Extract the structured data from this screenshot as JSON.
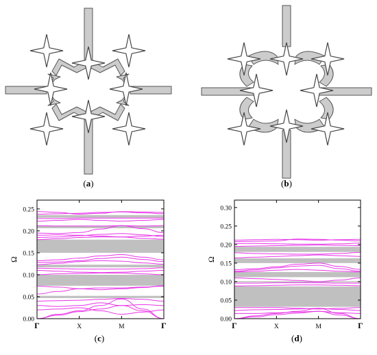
{
  "panels": {
    "a": {
      "open": "(",
      "letter": "a",
      "close": ")"
    },
    "b": {
      "open": "(",
      "letter": "b",
      "close": ")"
    },
    "c": {
      "open": "(",
      "letter": "c",
      "close": ")"
    },
    "d": {
      "open": "(",
      "letter": "d",
      "close": ")"
    }
  },
  "colors": {
    "band": "#e833e8",
    "gap": "#c0c0c0",
    "structure_fill": "#cccccc",
    "structure_stroke": "#555555"
  },
  "chart_data": [
    {
      "type": "line",
      "panel": "c",
      "xlabel": "",
      "ylabel": "Ω",
      "ylim": [
        0,
        0.27
      ],
      "x_ticks": [
        "Γ",
        "X",
        "M",
        "Γ"
      ],
      "y_ticks": [
        "0.00",
        "0.05",
        "0.10",
        "0.15",
        "0.20",
        "0.25"
      ],
      "y_tick_values": [
        0,
        0.05,
        0.1,
        0.15,
        0.2,
        0.25
      ],
      "band_gaps": [
        [
          0.047,
          0.052
        ],
        [
          0.075,
          0.1
        ],
        [
          0.117,
          0.123
        ],
        [
          0.15,
          0.18
        ],
        [
          0.206,
          0.211
        ],
        [
          0.23,
          0.236
        ]
      ],
      "x": [
        0,
        0.5,
        1,
        1.5,
        2,
        2.5,
        3
      ],
      "series": [
        {
          "values": [
            0.0,
            0.01,
            0.018,
            0.03,
            0.045,
            0.022,
            0.0
          ]
        },
        {
          "values": [
            0.0,
            0.008,
            0.016,
            0.022,
            0.03,
            0.018,
            0.0
          ]
        },
        {
          "values": [
            0.02,
            0.022,
            0.025,
            0.018,
            0.01,
            0.015,
            0.02
          ]
        },
        {
          "values": [
            0.03,
            0.028,
            0.03,
            0.036,
            0.03,
            0.032,
            0.03
          ]
        },
        {
          "values": [
            0.04,
            0.041,
            0.042,
            0.044,
            0.046,
            0.044,
            0.04
          ]
        },
        {
          "values": [
            0.056,
            0.062,
            0.068,
            0.07,
            0.07,
            0.072,
            0.074
          ]
        },
        {
          "values": [
            0.074,
            0.072,
            0.068,
            0.066,
            0.068,
            0.071,
            0.075
          ]
        },
        {
          "values": [
            0.1,
            0.102,
            0.103,
            0.104,
            0.104,
            0.102,
            0.1
          ]
        },
        {
          "values": [
            0.11,
            0.108,
            0.106,
            0.105,
            0.106,
            0.108,
            0.11
          ]
        },
        {
          "values": [
            0.115,
            0.114,
            0.113,
            0.113,
            0.113,
            0.114,
            0.116
          ]
        },
        {
          "values": [
            0.123,
            0.126,
            0.13,
            0.132,
            0.131,
            0.127,
            0.124
          ]
        },
        {
          "values": [
            0.128,
            0.129,
            0.132,
            0.137,
            0.14,
            0.135,
            0.13
          ]
        },
        {
          "values": [
            0.132,
            0.134,
            0.138,
            0.143,
            0.146,
            0.14,
            0.134
          ]
        },
        {
          "values": [
            0.18,
            0.182,
            0.185,
            0.186,
            0.186,
            0.183,
            0.181
          ]
        },
        {
          "values": [
            0.185,
            0.186,
            0.189,
            0.192,
            0.194,
            0.191,
            0.187
          ]
        },
        {
          "values": [
            0.19,
            0.191,
            0.19,
            0.188,
            0.186,
            0.188,
            0.19
          ]
        },
        {
          "values": [
            0.195,
            0.194,
            0.196,
            0.204,
            0.212,
            0.205,
            0.196
          ]
        },
        {
          "values": [
            0.212,
            0.211,
            0.211,
            0.211,
            0.212,
            0.211,
            0.212
          ]
        },
        {
          "values": [
            0.222,
            0.224,
            0.226,
            0.224,
            0.222,
            0.224,
            0.226
          ]
        },
        {
          "values": [
            0.228,
            0.228,
            0.229,
            0.229,
            0.229,
            0.229,
            0.229
          ]
        },
        {
          "values": [
            0.238,
            0.239,
            0.24,
            0.242,
            0.243,
            0.241,
            0.239
          ]
        },
        {
          "values": [
            0.244,
            0.242,
            0.238,
            0.24,
            0.244,
            0.243,
            0.242
          ]
        }
      ]
    },
    {
      "type": "line",
      "panel": "d",
      "xlabel": "",
      "ylabel": "Ω",
      "ylim": [
        0,
        0.32
      ],
      "x_ticks": [
        "Γ",
        "X",
        "M",
        "Γ"
      ],
      "y_ticks": [
        "0.00",
        "0.05",
        "0.10",
        "0.15",
        "0.20",
        "0.25",
        "0.30"
      ],
      "y_tick_values": [
        0,
        0.05,
        0.1,
        0.15,
        0.2,
        0.25,
        0.3
      ],
      "band_gaps": [
        [
          0.032,
          0.087
        ],
        [
          0.098,
          0.101
        ],
        [
          0.112,
          0.126
        ],
        [
          0.15,
          0.163
        ],
        [
          0.18,
          0.194
        ]
      ],
      "x": [
        0,
        0.5,
        1,
        1.5,
        2,
        2.5,
        3
      ],
      "series": [
        {
          "values": [
            0.0,
            0.008,
            0.014,
            0.02,
            0.028,
            0.014,
            0.0
          ]
        },
        {
          "values": [
            0.0,
            0.005,
            0.011,
            0.015,
            0.02,
            0.01,
            0.0
          ]
        },
        {
          "values": [
            0.014,
            0.014,
            0.016,
            0.018,
            0.02,
            0.016,
            0.014
          ]
        },
        {
          "values": [
            0.022,
            0.024,
            0.025,
            0.026,
            0.028,
            0.025,
            0.022
          ]
        },
        {
          "values": [
            0.03,
            0.03,
            0.03,
            0.028,
            0.026,
            0.028,
            0.03
          ]
        },
        {
          "values": [
            0.088,
            0.089,
            0.09,
            0.091,
            0.091,
            0.09,
            0.089
          ]
        },
        {
          "values": [
            0.096,
            0.096,
            0.097,
            0.097,
            0.097,
            0.096,
            0.096
          ]
        },
        {
          "values": [
            0.11,
            0.108,
            0.106,
            0.103,
            0.1,
            0.104,
            0.11
          ]
        },
        {
          "values": [
            0.126,
            0.128,
            0.131,
            0.133,
            0.131,
            0.128,
            0.126
          ]
        },
        {
          "values": [
            0.128,
            0.132,
            0.137,
            0.142,
            0.144,
            0.135,
            0.128
          ]
        },
        {
          "values": [
            0.132,
            0.135,
            0.14,
            0.147,
            0.15,
            0.141,
            0.133
          ]
        },
        {
          "values": [
            0.164,
            0.166,
            0.168,
            0.17,
            0.172,
            0.17,
            0.168
          ]
        },
        {
          "values": [
            0.178,
            0.176,
            0.175,
            0.174,
            0.174,
            0.176,
            0.179
          ]
        },
        {
          "values": [
            0.195,
            0.196,
            0.197,
            0.198,
            0.199,
            0.198,
            0.197
          ]
        },
        {
          "values": [
            0.203,
            0.203,
            0.202,
            0.201,
            0.201,
            0.202,
            0.204
          ]
        },
        {
          "values": [
            0.208,
            0.209,
            0.21,
            0.215,
            0.214,
            0.212,
            0.21
          ]
        },
        {
          "values": [
            0.212,
            0.213,
            0.214,
            0.213,
            0.212,
            0.213,
            0.214
          ]
        }
      ]
    }
  ]
}
